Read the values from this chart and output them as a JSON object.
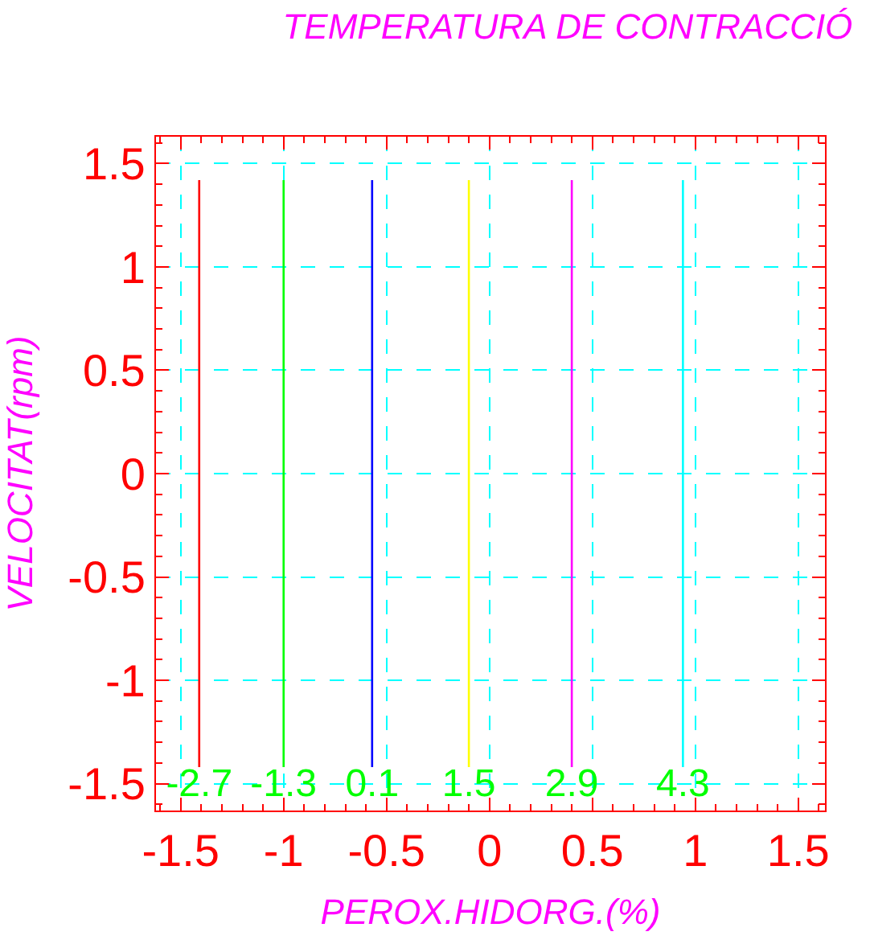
{
  "chart_data": {
    "type": "line",
    "title": "TEMPERATURA DE CONTRACCIÓ",
    "xlabel": "PEROX.HIDORG.(%)",
    "ylabel": "VELOCITAT(rpm)",
    "xlim": [
      -1.62,
      1.63
    ],
    "ylim": [
      -1.63,
      1.63
    ],
    "xticks": [
      -1.5,
      -1,
      -0.5,
      0,
      0.5,
      1,
      1.5
    ],
    "yticks": [
      -1.5,
      -1,
      -0.5,
      0,
      0.5,
      1,
      1.5
    ],
    "grid": true,
    "marker": "none",
    "line_style": "solid",
    "series": [
      {
        "name": "-2.7",
        "color": "#ff0000",
        "x": [
          -1.41,
          -1.41
        ],
        "values": [
          -1.42,
          1.42
        ]
      },
      {
        "name": "-1.3",
        "color": "#00ff00",
        "x": [
          -1.0,
          -1.0
        ],
        "values": [
          -1.42,
          1.42
        ]
      },
      {
        "name": "0.1",
        "color": "#0000ff",
        "x": [
          -0.57,
          -0.57
        ],
        "values": [
          -1.42,
          1.42
        ]
      },
      {
        "name": "1.5",
        "color": "#ffff00",
        "x": [
          -0.1,
          -0.1
        ],
        "values": [
          -1.42,
          1.42
        ]
      },
      {
        "name": "2.9",
        "color": "#ff00ff",
        "x": [
          0.4,
          0.4
        ],
        "values": [
          -1.42,
          1.42
        ]
      },
      {
        "name": "4.3",
        "color": "#00ffff",
        "x": [
          0.94,
          0.94
        ],
        "values": [
          -1.42,
          1.42
        ]
      }
    ]
  }
}
